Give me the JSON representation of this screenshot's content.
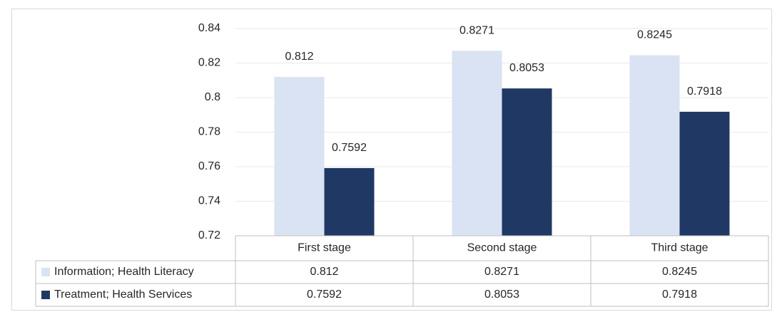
{
  "chart_data": {
    "type": "bar",
    "title": "",
    "xlabel": "",
    "ylabel": "",
    "categories": [
      "First stage",
      "Second stage",
      "Third stage"
    ],
    "series": [
      {
        "name": "Information; Health Literacy",
        "color": "#dae3f3",
        "values": [
          0.812,
          0.8271,
          0.8245
        ],
        "labels": [
          "0.812",
          "0.8271",
          "0.8245"
        ]
      },
      {
        "name": "Treatment; Health Services",
        "color": "#203864",
        "values": [
          0.7592,
          0.8053,
          0.7918
        ],
        "labels": [
          "0.7592",
          "0.8053",
          "0.7918"
        ]
      }
    ],
    "ylim": [
      0.72,
      0.84
    ],
    "yticks": [
      0.72,
      0.74,
      0.76,
      0.78,
      0.8,
      0.82,
      0.84
    ],
    "ytick_labels": [
      "0.72",
      "0.74",
      "0.76",
      "0.78",
      "0.8",
      "0.82",
      "0.84"
    ],
    "grid": true,
    "legend": "data-table",
    "data_table": true
  }
}
